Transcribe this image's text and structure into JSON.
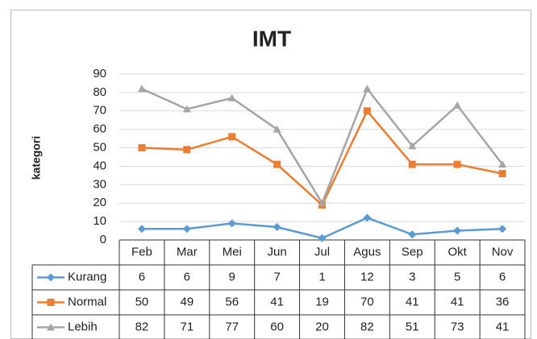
{
  "chart_data": {
    "type": "line",
    "title": "IMT",
    "y_label": "kategori",
    "categories": [
      "Feb",
      "Mar",
      "Mei",
      "Jun",
      "Jul",
      "Agus",
      "Sep",
      "Okt",
      "Nov"
    ],
    "series": [
      {
        "name": "Kurang",
        "color": "#5b9bd5",
        "marker": "diamond",
        "values": [
          6,
          6,
          9,
          7,
          1,
          12,
          3,
          5,
          6
        ]
      },
      {
        "name": "Normal",
        "color": "#ed7d31",
        "marker": "square",
        "values": [
          50,
          49,
          56,
          41,
          19,
          70,
          41,
          41,
          36
        ]
      },
      {
        "name": "Lebih",
        "color": "#a5a5a5",
        "marker": "triangle",
        "values": [
          82,
          71,
          77,
          60,
          20,
          82,
          51,
          73,
          41
        ]
      }
    ],
    "ylim": [
      0,
      90
    ],
    "yticks": [
      0,
      10,
      20,
      30,
      40,
      50,
      60,
      70,
      80,
      90
    ],
    "grid": true,
    "data_table": true
  }
}
